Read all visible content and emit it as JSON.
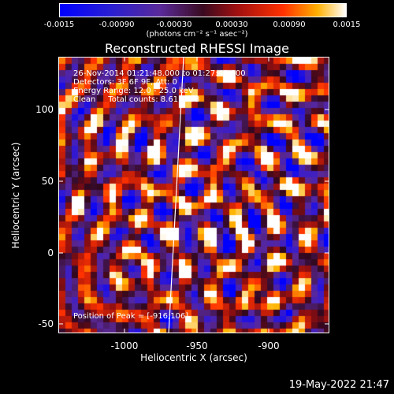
{
  "colorbar": {
    "ticks": [
      "-0.0015",
      "-0.00090",
      "-0.00030",
      "0.00030",
      "0.00090",
      "0.0015"
    ],
    "units": "(photons cm⁻² s⁻¹ asec⁻²)",
    "min": -0.0015,
    "max": 0.0015
  },
  "image": {
    "title": "Reconstructed RHESSI Image",
    "time_range": "26-Nov-2014 01:21:48.000 to 01:27:48.000",
    "detectors": "Detectors: 3F 6F 9F, Att: 0",
    "energy_range": "Energy Range: 12.0 - 25.0 keV",
    "algorithm": "Clean",
    "total_counts": "Total counts: 8.61E+03",
    "peak": "Position of Peak = [-916,106]",
    "limb_color": "#ffffff"
  },
  "axes": {
    "xlabel": "Heliocentric X (arcsec)",
    "ylabel": "Heliocentric Y (arcsec)",
    "xticks": [
      "-1000",
      "-950",
      "-900"
    ],
    "yticks": [
      "100",
      "50",
      "0",
      "-50"
    ],
    "xrange": [
      -1047,
      -857
    ],
    "yrange": [
      -57,
      135
    ]
  },
  "footer": {
    "timestamp": "19-May-2022 21:47"
  }
}
